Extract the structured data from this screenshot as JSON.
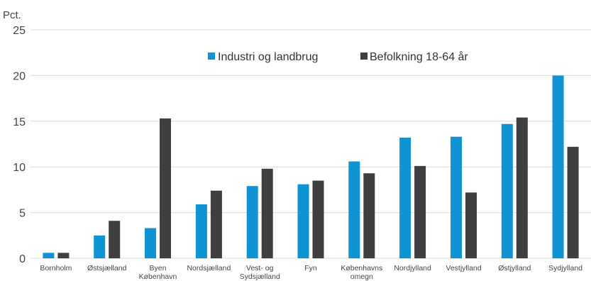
{
  "chart_data": {
    "type": "bar",
    "unit_label": "Pct.",
    "categories": [
      [
        "Bornholm"
      ],
      [
        "Østsjælland"
      ],
      [
        "Byen",
        "København"
      ],
      [
        "Nordsjælland"
      ],
      [
        "Vest- og",
        "Sydsjælland"
      ],
      [
        "Fyn"
      ],
      [
        "Københavns",
        "omegn"
      ],
      [
        "Nordjylland"
      ],
      [
        "Vestjylland"
      ],
      [
        "Østjylland"
      ],
      [
        "Sydjylland"
      ]
    ],
    "series": [
      {
        "name": "Industri og landbrug",
        "color": "#0f93d2",
        "values": [
          0.6,
          2.5,
          3.3,
          5.9,
          7.9,
          8.1,
          10.6,
          13.2,
          13.3,
          14.7,
          20.0
        ]
      },
      {
        "name": "Befolkning 18-64 år",
        "color": "#3f3f3f",
        "values": [
          0.6,
          4.1,
          15.3,
          7.4,
          9.8,
          8.5,
          9.3,
          10.1,
          7.2,
          15.4,
          12.2
        ]
      }
    ],
    "ylim": [
      0,
      25
    ],
    "yticks": [
      0,
      5,
      10,
      15,
      20,
      25
    ],
    "grid": true,
    "legend_position": "top-right"
  }
}
